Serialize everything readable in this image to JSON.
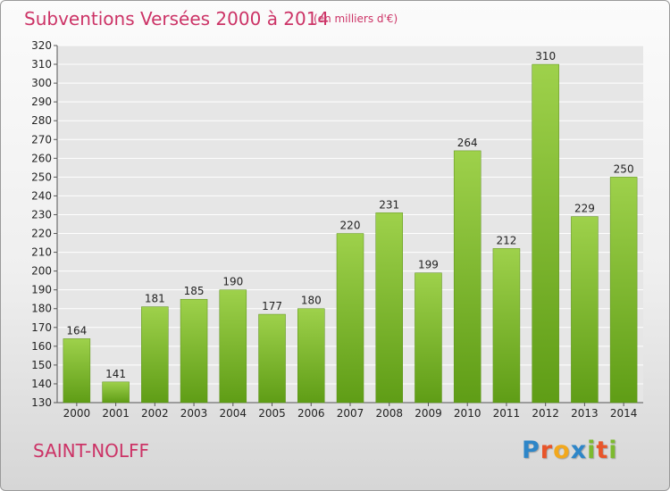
{
  "title": "Subventions Versées 2000 à 2014",
  "subtitle": "(en milliers d'€)",
  "commune": "SAINT-NOLFF",
  "logo": {
    "text": "Proxiti",
    "letters": [
      {
        "ch": "P",
        "color": "#2e86c8"
      },
      {
        "ch": "r",
        "color": "#e8552a"
      },
      {
        "ch": "o",
        "color": "#f2a81d"
      },
      {
        "ch": "x",
        "color": "#2e86c8"
      },
      {
        "ch": "i",
        "color": "#7cba2f"
      },
      {
        "ch": "t",
        "color": "#e8552a"
      },
      {
        "ch": "i",
        "color": "#7cba2f"
      }
    ]
  },
  "colors": {
    "title": "#cc3366",
    "bar_top": "#9ed14b",
    "bar_bottom": "#5f9d16",
    "grid": "#ffffff"
  },
  "chart_data": {
    "type": "bar",
    "categories": [
      "2000",
      "2001",
      "2002",
      "2003",
      "2004",
      "2005",
      "2006",
      "2007",
      "2008",
      "2009",
      "2010",
      "2011",
      "2012",
      "2013",
      "2014"
    ],
    "values": [
      164,
      141,
      181,
      185,
      190,
      177,
      180,
      220,
      231,
      199,
      264,
      212,
      310,
      229,
      250
    ],
    "ylim": [
      130,
      320
    ],
    "ytick_step": 10,
    "grid": true,
    "legend": "none"
  }
}
